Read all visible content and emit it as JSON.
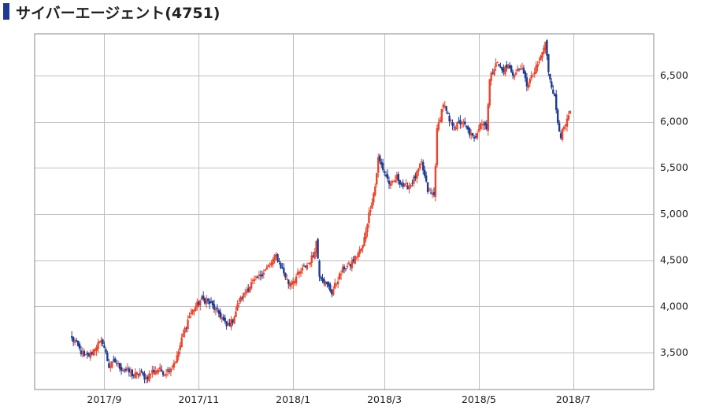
{
  "title": "サイバーエージェント(4751)",
  "chart_data": {
    "type": "candlestick",
    "title": "サイバーエージェント(4751)",
    "xlabel": "",
    "ylabel": "",
    "ylim": [
      3100,
      6950
    ],
    "x_ticks": [
      {
        "label": "2017/9",
        "day": 21
      },
      {
        "label": "2017/11",
        "day": 82
      },
      {
        "label": "2018/1",
        "day": 143
      },
      {
        "label": "2018/3",
        "day": 202
      },
      {
        "label": "2018/5",
        "day": 263
      },
      {
        "label": "2018/7",
        "day": 324
      }
    ],
    "x_range": [
      -24,
      376
    ],
    "y_ticks": [
      {
        "label": "3,500",
        "value": 3500
      },
      {
        "label": "4,000",
        "value": 4000
      },
      {
        "label": "4,500",
        "value": 4500
      },
      {
        "label": "5,000",
        "value": 5000
      },
      {
        "label": "5,500",
        "value": 5500
      },
      {
        "label": "6,000",
        "value": 6000
      },
      {
        "label": "6,500",
        "value": 6500
      }
    ],
    "colors": {
      "up": "#e8452c",
      "down": "#1f3a93",
      "grid": "#bfbfbf",
      "frame": "#888888"
    },
    "grid": true,
    "approx_closes": [
      [
        0,
        3650
      ],
      [
        4,
        3560
      ],
      [
        8,
        3450
      ],
      [
        12,
        3480
      ],
      [
        16,
        3580
      ],
      [
        20,
        3620
      ],
      [
        24,
        3350
      ],
      [
        28,
        3400
      ],
      [
        32,
        3330
      ],
      [
        36,
        3300
      ],
      [
        40,
        3250
      ],
      [
        44,
        3280
      ],
      [
        48,
        3220
      ],
      [
        52,
        3300
      ],
      [
        56,
        3320
      ],
      [
        60,
        3280
      ],
      [
        64,
        3340
      ],
      [
        68,
        3450
      ],
      [
        72,
        3700
      ],
      [
        76,
        3900
      ],
      [
        80,
        4000
      ],
      [
        84,
        4080
      ],
      [
        88,
        4050
      ],
      [
        92,
        3980
      ],
      [
        96,
        3900
      ],
      [
        100,
        3780
      ],
      [
        104,
        3850
      ],
      [
        108,
        4050
      ],
      [
        112,
        4150
      ],
      [
        116,
        4250
      ],
      [
        120,
        4300
      ],
      [
        124,
        4380
      ],
      [
        128,
        4450
      ],
      [
        132,
        4550
      ],
      [
        136,
        4400
      ],
      [
        140,
        4250
      ],
      [
        144,
        4300
      ],
      [
        148,
        4380
      ],
      [
        152,
        4450
      ],
      [
        156,
        4550
      ],
      [
        158,
        4700
      ],
      [
        160,
        4350
      ],
      [
        164,
        4250
      ],
      [
        168,
        4150
      ],
      [
        172,
        4300
      ],
      [
        176,
        4420
      ],
      [
        180,
        4450
      ],
      [
        184,
        4550
      ],
      [
        188,
        4650
      ],
      [
        192,
        5000
      ],
      [
        196,
        5300
      ],
      [
        198,
        5600
      ],
      [
        202,
        5450
      ],
      [
        206,
        5300
      ],
      [
        210,
        5400
      ],
      [
        214,
        5300
      ],
      [
        218,
        5300
      ],
      [
        222,
        5400
      ],
      [
        226,
        5550
      ],
      [
        230,
        5250
      ],
      [
        234,
        5200
      ],
      [
        236,
        5900
      ],
      [
        240,
        6200
      ],
      [
        244,
        6000
      ],
      [
        248,
        5950
      ],
      [
        252,
        6000
      ],
      [
        256,
        5900
      ],
      [
        260,
        5800
      ],
      [
        264,
        6000
      ],
      [
        268,
        5950
      ],
      [
        270,
        6450
      ],
      [
        274,
        6650
      ],
      [
        278,
        6550
      ],
      [
        282,
        6600
      ],
      [
        286,
        6500
      ],
      [
        290,
        6600
      ],
      [
        294,
        6400
      ],
      [
        298,
        6500
      ],
      [
        302,
        6650
      ],
      [
        306,
        6850
      ],
      [
        308,
        6550
      ],
      [
        312,
        6250
      ],
      [
        314,
        6000
      ],
      [
        316,
        5850
      ],
      [
        320,
        6000
      ],
      [
        322,
        6100
      ]
    ]
  }
}
